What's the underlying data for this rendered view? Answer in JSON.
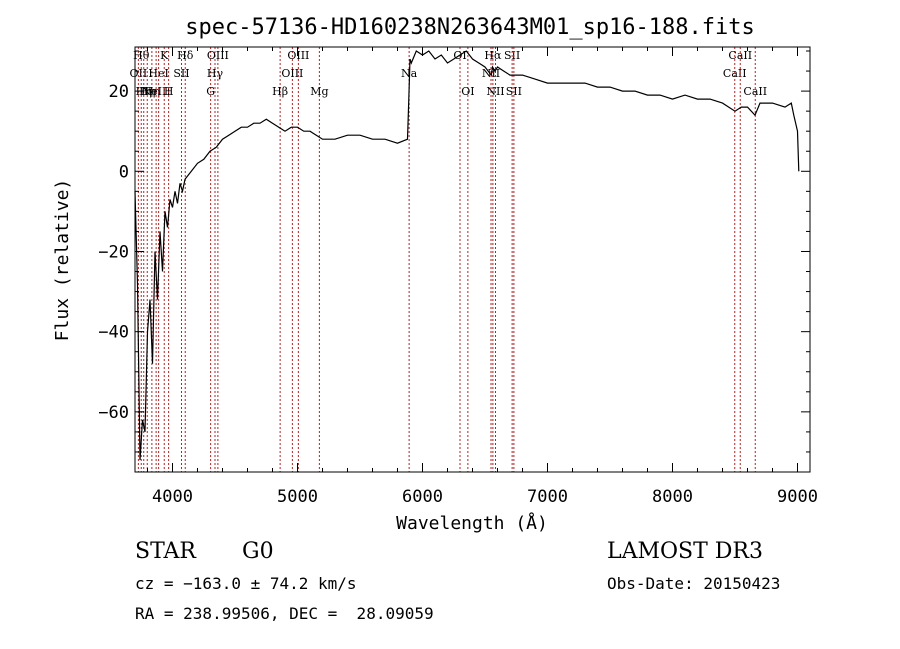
{
  "chart_data": {
    "type": "line",
    "title": "spec-57136-HD160238N263643M01_sp16-188.fits",
    "xlabel": "Wavelength (Å)",
    "ylabel": "Flux (relative)",
    "xlim": [
      3700,
      9100
    ],
    "ylim": [
      -75,
      31
    ],
    "x_ticks": [
      4000,
      5000,
      6000,
      7000,
      8000,
      9000
    ],
    "y_ticks": [
      -60,
      -40,
      -20,
      0,
      20
    ],
    "line_color": "#000000",
    "marker_color": "#b22222",
    "series": [
      {
        "x": [
          3700,
          3720,
          3740,
          3760,
          3780,
          3800,
          3820,
          3840,
          3860,
          3880,
          3900,
          3920,
          3940,
          3960,
          3980,
          4000,
          4020,
          4040,
          4060,
          4080,
          4100,
          4150,
          4200,
          4250,
          4300,
          4350,
          4400,
          4450,
          4500,
          4550,
          4600,
          4650,
          4700,
          4750,
          4800,
          4850,
          4900,
          4950,
          5000,
          5050,
          5100,
          5150,
          5200,
          5300,
          5400,
          5500,
          5600,
          5700,
          5800,
          5880,
          5890,
          5900,
          5910,
          5950,
          6000,
          6050,
          6100,
          6150,
          6200,
          6250,
          6300,
          6350,
          6400,
          6450,
          6500,
          6550,
          6560,
          6580,
          6600,
          6650,
          6700,
          6800,
          6900,
          7000,
          7100,
          7200,
          7300,
          7400,
          7500,
          7600,
          7700,
          7800,
          7900,
          8000,
          8100,
          8200,
          8300,
          8400,
          8500,
          8550,
          8600,
          8660,
          8700,
          8800,
          8900,
          8950,
          8970,
          9000,
          9010
        ],
        "y": [
          -5,
          -28,
          -72,
          -62,
          -65,
          -40,
          -32,
          -48,
          -20,
          -32,
          -15,
          -25,
          -10,
          -14,
          -7,
          -9,
          -5,
          -8,
          -3,
          -5,
          -2,
          0,
          2,
          3,
          5,
          6,
          8,
          9,
          10,
          11,
          11,
          12,
          12,
          13,
          12,
          11,
          10,
          11,
          11,
          10,
          10,
          9,
          8,
          8,
          9,
          9,
          8,
          8,
          7,
          8,
          18,
          28,
          27,
          30,
          29,
          30,
          28,
          29,
          27,
          28,
          29,
          30,
          28,
          27,
          26,
          24,
          26,
          25,
          26,
          25,
          24,
          24,
          23,
          22,
          22,
          22,
          22,
          21,
          21,
          20,
          20,
          19,
          19,
          18,
          19,
          18,
          18,
          17,
          15,
          16,
          16,
          14,
          17,
          17,
          16,
          17,
          14,
          10,
          0
        ]
      }
    ],
    "line_markers": [
      {
        "wl": 3727,
        "label": "OII",
        "row": 1
      },
      {
        "wl": 3750,
        "label": "Hθ",
        "row": 0
      },
      {
        "wl": 3770,
        "label": "Hη",
        "row": 2
      },
      {
        "wl": 3798,
        "label": "Hη",
        "row": 2
      },
      {
        "wl": 3835,
        "label": "Hη",
        "row": 2
      },
      {
        "wl": 3869,
        "label": "NeIII",
        "row": 2
      },
      {
        "wl": 3889,
        "label": "HeI",
        "row": 1
      },
      {
        "wl": 3934,
        "label": "K",
        "row": 0
      },
      {
        "wl": 3969,
        "label": "H",
        "row": 2
      },
      {
        "wl": 4072,
        "label": "SII",
        "row": 1
      },
      {
        "wl": 4102,
        "label": "Hδ",
        "row": 0
      },
      {
        "wl": 4305,
        "label": "G",
        "row": 2
      },
      {
        "wl": 4340,
        "label": "Hγ",
        "row": 1
      },
      {
        "wl": 4363,
        "label": "OIII",
        "row": 0
      },
      {
        "wl": 4861,
        "label": "Hβ",
        "row": 2
      },
      {
        "wl": 4959,
        "label": "OIII",
        "row": 1
      },
      {
        "wl": 5007,
        "label": "OIII",
        "row": 0
      },
      {
        "wl": 5175,
        "label": "Mg",
        "row": 2
      },
      {
        "wl": 5893,
        "label": "Na",
        "row": 1
      },
      {
        "wl": 6300,
        "label": "OI",
        "row": 0
      },
      {
        "wl": 6363,
        "label": "OI",
        "row": 2
      },
      {
        "wl": 6548,
        "label": "NII",
        "row": 1
      },
      {
        "wl": 6563,
        "label": "Hα",
        "row": 0
      },
      {
        "wl": 6584,
        "label": "NII",
        "row": 2
      },
      {
        "wl": 6717,
        "label": "SII",
        "row": 0
      },
      {
        "wl": 6731,
        "label": "SII",
        "row": 2
      },
      {
        "wl": 8498,
        "label": "CaII",
        "row": 1
      },
      {
        "wl": 8542,
        "label": "CaII",
        "row": 0
      },
      {
        "wl": 8662,
        "label": "CaII",
        "row": 2
      }
    ]
  },
  "info": {
    "object_class": "STAR",
    "subclass": "G0",
    "survey": "LAMOST DR3",
    "cz": "cz = −163.0 ± 74.2 km/s",
    "obs_date": "Obs-Date: 20150423",
    "coords": "RA = 238.99506, DEC =  28.09059"
  }
}
